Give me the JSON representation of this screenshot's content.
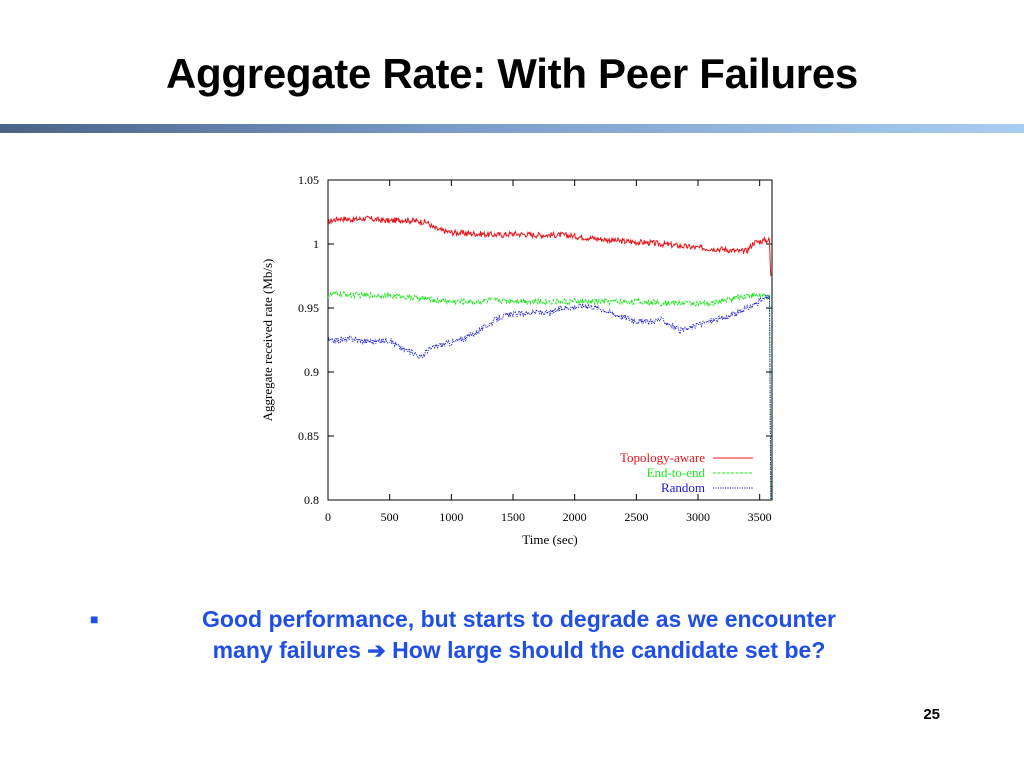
{
  "slide": {
    "title": "Aggregate Rate: With Peer Failures",
    "bullet": {
      "line1": "Good performance, but starts to degrade as we encounter",
      "line2a": "many failures",
      "arrow": "➔",
      "line2b": "How large should the candidate set be?"
    },
    "page_number": "25"
  },
  "chart_data": {
    "type": "line",
    "xlabel": "Time (sec)",
    "ylabel": "Aggregate received rate (Mb/s)",
    "xlim": [
      0,
      3600
    ],
    "ylim": [
      0.8,
      1.05
    ],
    "xticks": [
      "0",
      "500",
      "1000",
      "1500",
      "2000",
      "2500",
      "3000",
      "3500"
    ],
    "xtick_values": [
      0,
      500,
      1000,
      1500,
      2000,
      2500,
      3000,
      3500
    ],
    "yticks": [
      "0.8",
      "0.85",
      "0.9",
      "0.95",
      "1",
      "1.05"
    ],
    "ytick_values": [
      0.8,
      0.85,
      0.9,
      0.95,
      1.0,
      1.05
    ],
    "legend_position": "bottom-right",
    "series": [
      {
        "name": "Topology-aware",
        "color": "#e8141b",
        "style": "solid",
        "x": [
          0,
          50,
          100,
          200,
          300,
          400,
          500,
          600,
          700,
          800,
          850,
          900,
          1000,
          1200,
          1400,
          1500,
          1700,
          1900,
          2000,
          2200,
          2400,
          2600,
          2800,
          3000,
          3200,
          3350,
          3400,
          3450,
          3500,
          3550,
          3580,
          3585,
          3590
        ],
        "y": [
          1.017,
          1.019,
          1.02,
          1.019,
          1.02,
          1.019,
          1.018,
          1.019,
          1.018,
          1.017,
          1.013,
          1.011,
          1.009,
          1.008,
          1.007,
          1.008,
          1.007,
          1.007,
          1.006,
          1.004,
          1.002,
          1.001,
          0.999,
          0.997,
          0.996,
          0.994,
          0.995,
          1.001,
          1.002,
          1.003,
          1.003,
          0.985,
          0.975
        ]
      },
      {
        "name": "End-to-end",
        "color": "#1ee81e",
        "style": "dashed",
        "x": [
          0,
          100,
          200,
          400,
          600,
          700,
          800,
          900,
          1000,
          1200,
          1300,
          1400,
          1500,
          1700,
          1900,
          2100,
          2300,
          2500,
          2700,
          2900,
          3100,
          3200,
          3300,
          3400,
          3500,
          3550,
          3580,
          3590
        ],
        "y": [
          0.96,
          0.961,
          0.96,
          0.96,
          0.959,
          0.958,
          0.957,
          0.956,
          0.955,
          0.955,
          0.956,
          0.956,
          0.956,
          0.955,
          0.955,
          0.955,
          0.955,
          0.955,
          0.954,
          0.954,
          0.953,
          0.956,
          0.958,
          0.96,
          0.96,
          0.959,
          0.958,
          0.8
        ]
      },
      {
        "name": "Random",
        "color": "#1a1ad6",
        "style": "dotted",
        "x": [
          0,
          100,
          200,
          300,
          400,
          500,
          600,
          700,
          760,
          800,
          900,
          1000,
          1100,
          1200,
          1300,
          1400,
          1500,
          1600,
          1700,
          1800,
          1900,
          2000,
          2100,
          2200,
          2300,
          2400,
          2500,
          2600,
          2700,
          2800,
          2850,
          2900,
          3000,
          3100,
          3200,
          3300,
          3400,
          3500,
          3550,
          3580,
          3590
        ],
        "y": [
          0.924,
          0.925,
          0.926,
          0.924,
          0.924,
          0.925,
          0.918,
          0.915,
          0.911,
          0.917,
          0.921,
          0.923,
          0.926,
          0.931,
          0.937,
          0.943,
          0.945,
          0.946,
          0.947,
          0.946,
          0.95,
          0.951,
          0.952,
          0.95,
          0.946,
          0.943,
          0.94,
          0.939,
          0.941,
          0.936,
          0.932,
          0.933,
          0.937,
          0.94,
          0.942,
          0.945,
          0.95,
          0.955,
          0.958,
          0.959,
          0.8
        ]
      }
    ]
  }
}
